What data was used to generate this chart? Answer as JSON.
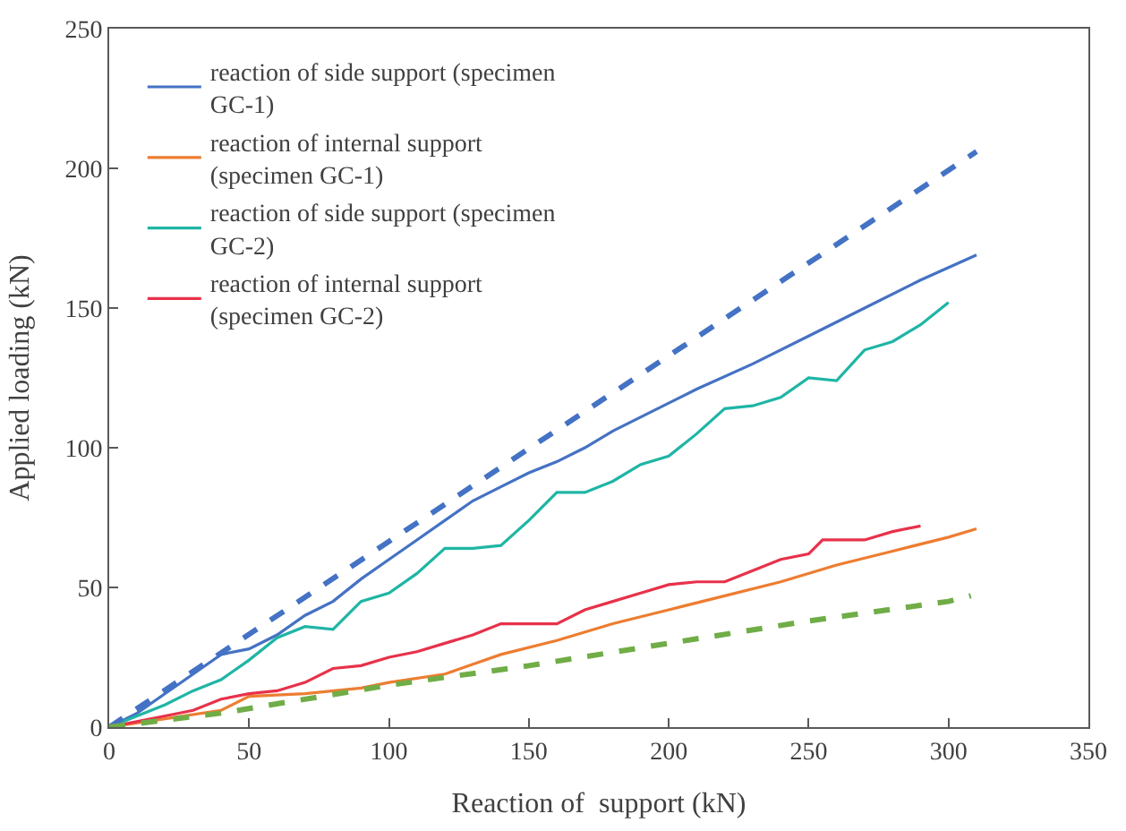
{
  "chart_data": {
    "type": "line",
    "xlabel": "Reaction of  support (kN)",
    "ylabel": "Applied loading (kN)",
    "xlim": [
      0,
      350
    ],
    "ylim": [
      0,
      250
    ],
    "xticks": [
      0,
      50,
      100,
      150,
      200,
      250,
      300,
      350
    ],
    "yticks": [
      0,
      50,
      100,
      150,
      200,
      250
    ],
    "legend": "top left",
    "marker": "none",
    "series": [
      {
        "name": "reaction of side support (specimen GC-1)",
        "color": "#4472c4",
        "line_style": "solid",
        "x": [
          0,
          10,
          20,
          30,
          40,
          50,
          60,
          70,
          80,
          90,
          100,
          110,
          120,
          130,
          140,
          150,
          160,
          170,
          180,
          200,
          210,
          230,
          250,
          270,
          290,
          310
        ],
        "values": [
          0,
          5,
          12,
          19,
          26,
          28,
          33,
          40,
          45,
          53,
          60,
          67,
          74,
          81,
          86,
          91,
          95,
          100,
          106,
          116,
          121,
          130,
          140,
          150,
          160,
          169
        ]
      },
      {
        "name": "reaction of internal support (specimen GC-1)",
        "color": "#ed7d31",
        "line_style": "solid",
        "x": [
          0,
          20,
          40,
          50,
          70,
          90,
          100,
          120,
          140,
          160,
          180,
          200,
          220,
          240,
          260,
          280,
          300,
          310
        ],
        "values": [
          0,
          3,
          6,
          11,
          12,
          14,
          16,
          19,
          26,
          31,
          37,
          42,
          47,
          52,
          58,
          63,
          68,
          71
        ]
      },
      {
        "name": "reaction of side support (specimen GC-2)",
        "color": "#1fb5a5",
        "line_style": "solid",
        "x": [
          0,
          20,
          30,
          40,
          50,
          60,
          70,
          80,
          90,
          100,
          110,
          120,
          130,
          140,
          150,
          160,
          170,
          180,
          190,
          200,
          210,
          220,
          230,
          240,
          250,
          260,
          270,
          280,
          290,
          300
        ],
        "values": [
          0,
          8,
          13,
          17,
          24,
          32,
          36,
          35,
          45,
          48,
          55,
          64,
          64,
          65,
          74,
          84,
          84,
          88,
          94,
          97,
          105,
          114,
          115,
          118,
          125,
          124,
          135,
          138,
          144,
          152
        ]
      },
      {
        "name": "reaction of internal support (specimen GC-2)",
        "color": "#e8314a",
        "line_style": "solid",
        "x": [
          0,
          20,
          30,
          40,
          50,
          60,
          70,
          80,
          90,
          100,
          110,
          120,
          130,
          140,
          150,
          160,
          170,
          180,
          190,
          200,
          210,
          220,
          230,
          240,
          250,
          255,
          270,
          280,
          290
        ],
        "values": [
          0,
          4,
          6,
          10,
          12,
          13,
          16,
          21,
          22,
          25,
          27,
          30,
          33,
          37,
          37,
          37,
          42,
          45,
          48,
          51,
          52,
          52,
          56,
          60,
          62,
          67,
          67,
          70,
          72
        ]
      },
      {
        "color": "#4472c4",
        "line_style": "dashed",
        "x": [
          0,
          310
        ],
        "values": [
          0,
          206
        ]
      },
      {
        "color": "#70ad47",
        "line_style": "dashed",
        "x": [
          0,
          40,
          100,
          150,
          200,
          250,
          300,
          308
        ],
        "values": [
          0,
          5,
          15,
          22,
          30,
          38,
          45,
          47
        ]
      }
    ]
  }
}
